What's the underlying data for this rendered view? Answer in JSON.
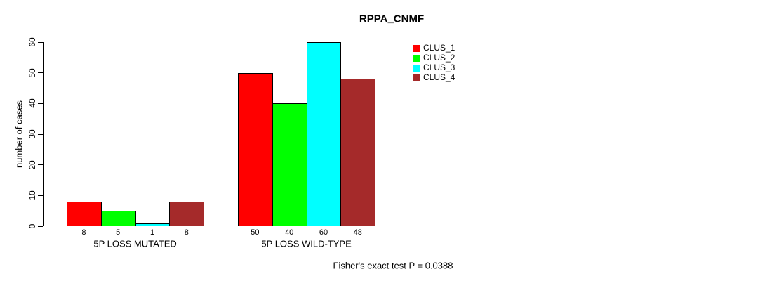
{
  "chart_data": {
    "type": "bar",
    "title": "RPPA_CNMF",
    "xlabel": "",
    "ylabel": "number of cases",
    "ylim": [
      0,
      60
    ],
    "yticks": [
      0,
      10,
      20,
      30,
      40,
      50,
      60
    ],
    "grid": false,
    "legend_position": "top-right",
    "categories": [
      "5P LOSS MUTATED",
      "5P LOSS WILD-TYPE"
    ],
    "series": [
      {
        "name": "CLUS_1",
        "color": "#FF0000",
        "values": [
          8,
          50
        ]
      },
      {
        "name": "CLUS_2",
        "color": "#00FF00",
        "values": [
          5,
          40
        ]
      },
      {
        "name": "CLUS_3",
        "color": "#00FFFF",
        "values": [
          1,
          60
        ]
      },
      {
        "name": "CLUS_4",
        "color": "#A52A2A",
        "values": [
          8,
          48
        ]
      }
    ],
    "bar_value_labels": [
      [
        "8",
        "5",
        "1",
        "8"
      ],
      [
        "50",
        "40",
        "60",
        "48"
      ]
    ],
    "annotation": "Fisher's exact test P = 0.0388",
    "text_color": "#000000",
    "background_color": "#FFFFFF"
  }
}
